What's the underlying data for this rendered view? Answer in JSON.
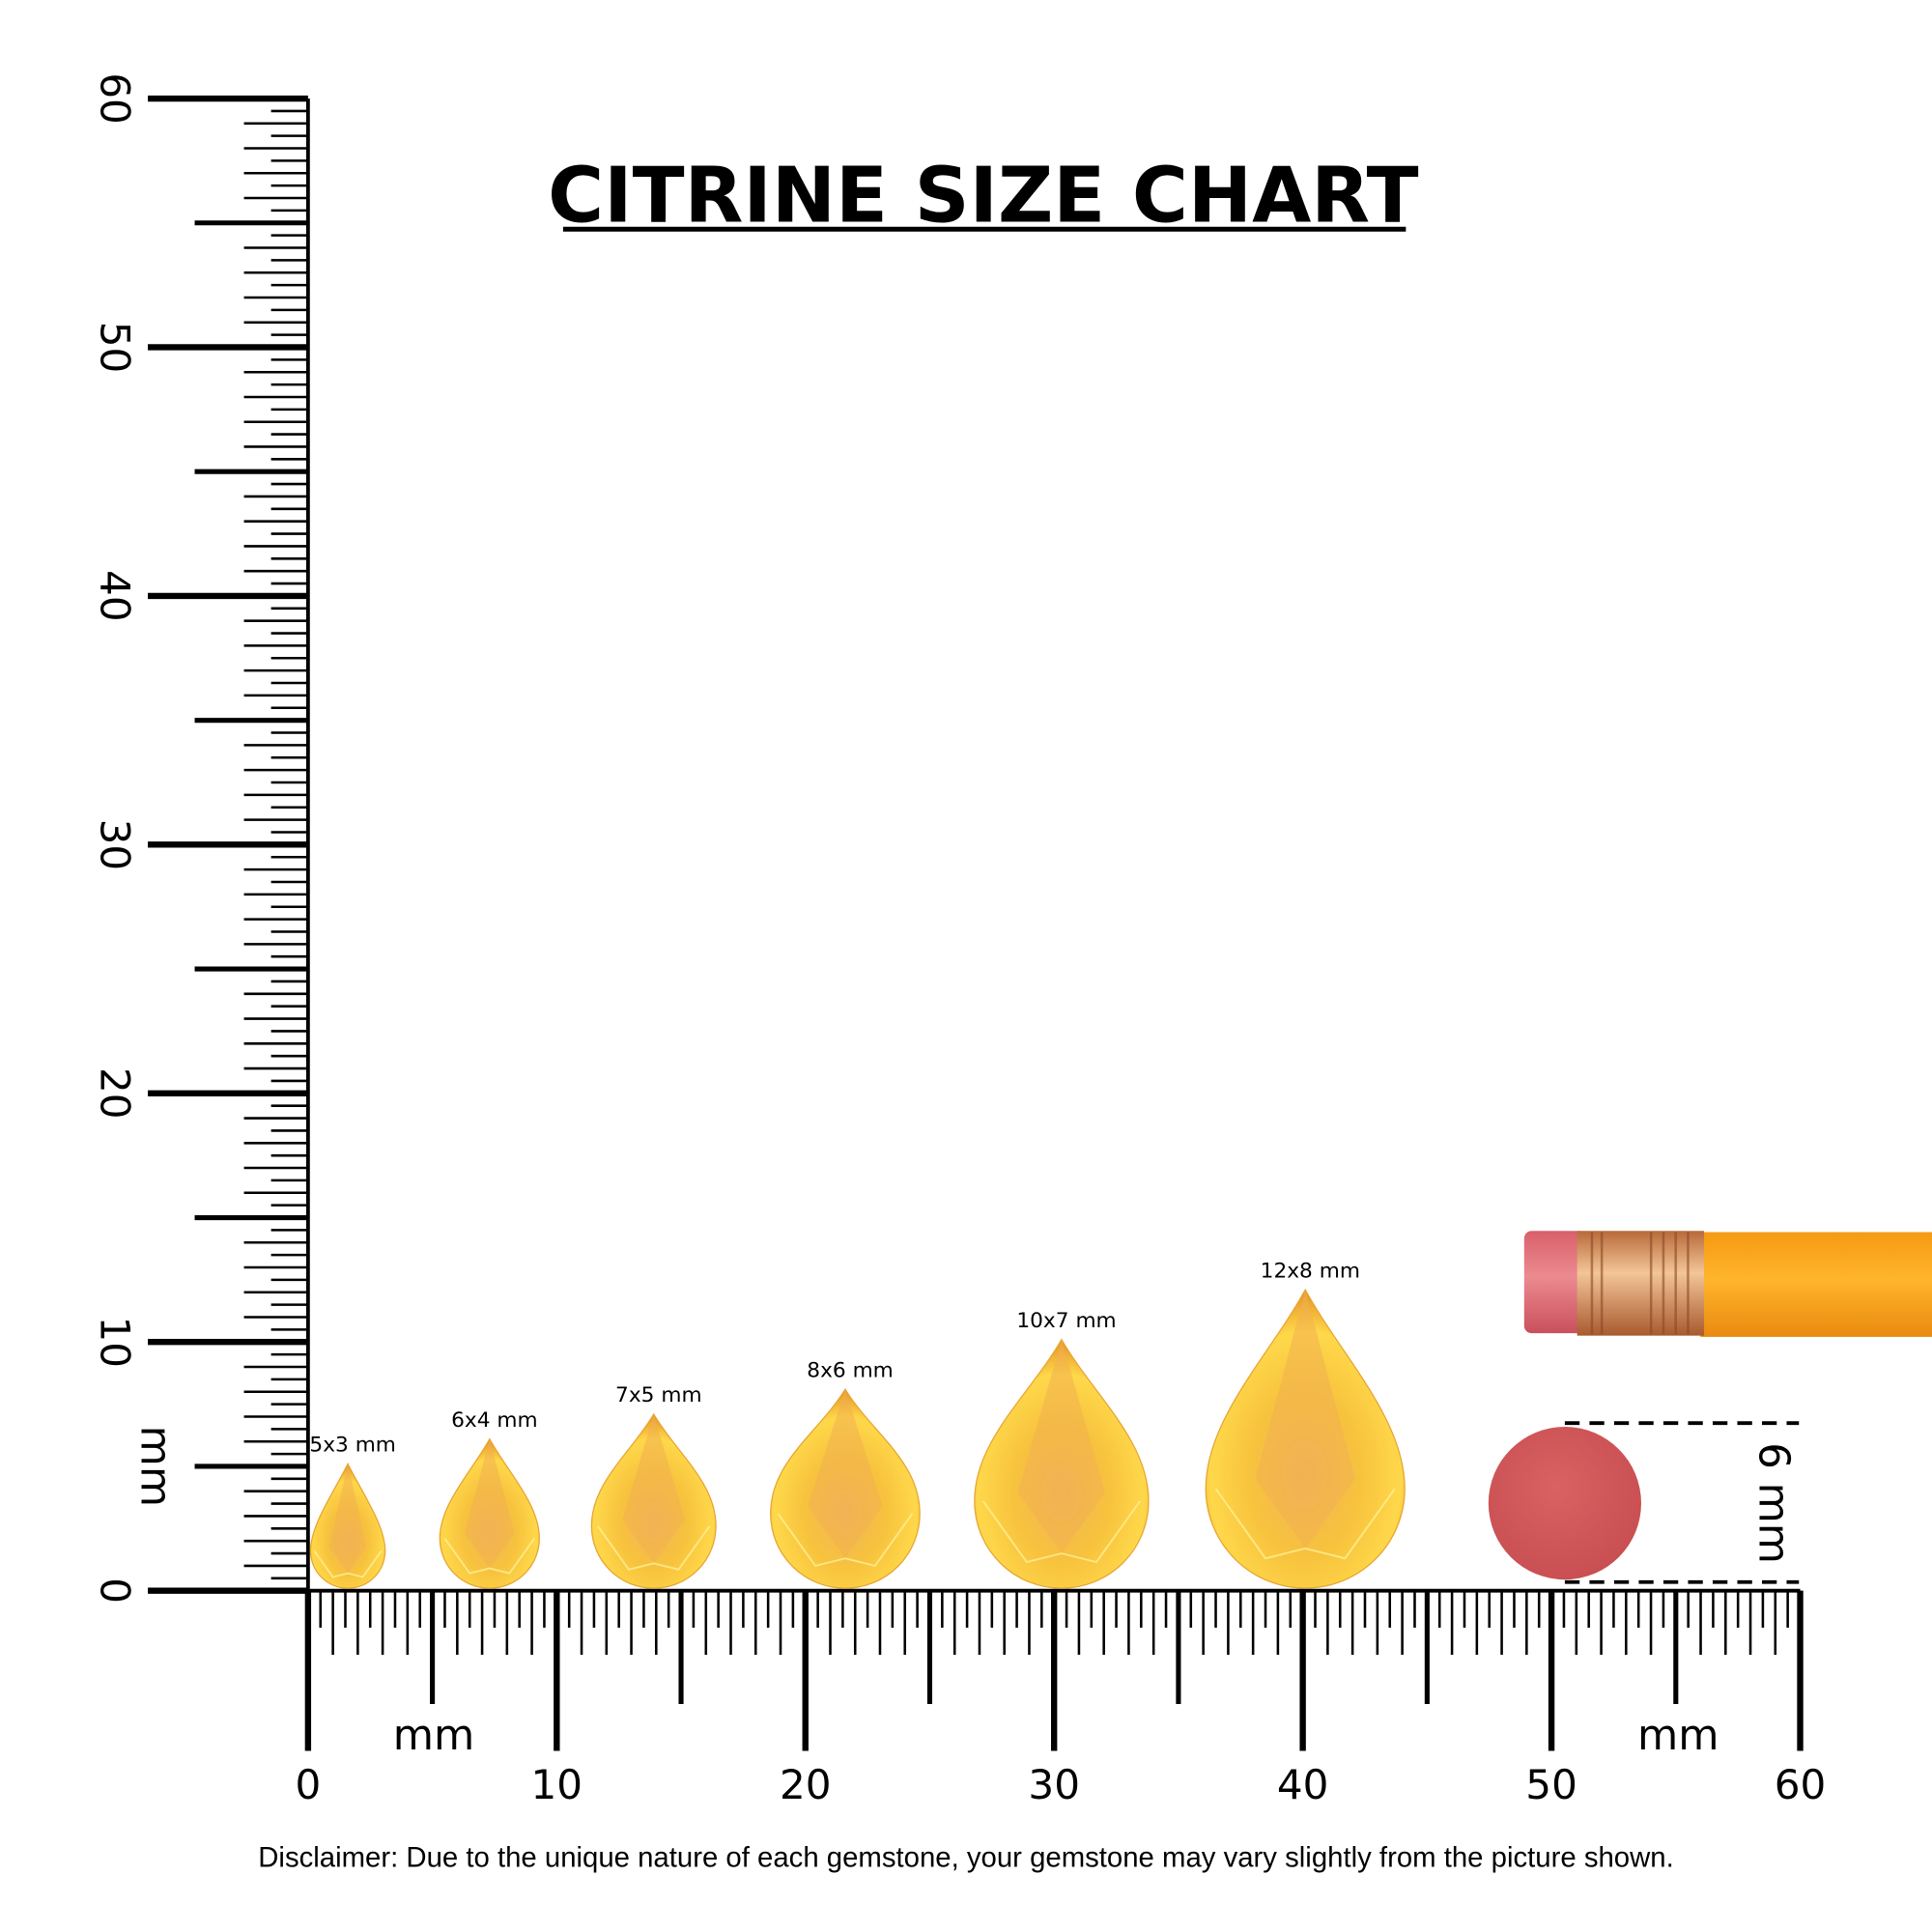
{
  "title": "CITRINE SIZE CHART",
  "disclaimer": "Disclaimer: Due to the unique nature of each gemstone, your gemstone may vary slightly from the picture shown.",
  "colors": {
    "gem_light": "#ffd84a",
    "gem_mid": "#f5b73b",
    "gem_dark": "#e89a2a",
    "eraser_ball": "#d05a5a",
    "pencil_body": "#f7a21b",
    "eraser": "#e0707a",
    "ferrule": "#d9955a"
  },
  "chart_data": {
    "type": "size-comparison",
    "title": "CITRINE SIZE CHART",
    "x_axis": {
      "unit_label": "mm",
      "range": [
        0,
        60
      ],
      "tick_labels": [
        "0",
        "10",
        "20",
        "30",
        "40",
        "50",
        "60"
      ]
    },
    "y_axis": {
      "unit_label": "mm",
      "range": [
        0,
        60
      ],
      "tick_labels": [
        "0",
        "10",
        "20",
        "30",
        "40",
        "50",
        "60"
      ]
    },
    "gems": [
      {
        "label": "5x3 mm",
        "length_mm": 5,
        "width_mm": 3,
        "center_mm": 1.6
      },
      {
        "label": "6x4 mm",
        "length_mm": 6,
        "width_mm": 4,
        "center_mm": 7.3
      },
      {
        "label": "7x5 mm",
        "length_mm": 7,
        "width_mm": 5,
        "center_mm": 13.9
      },
      {
        "label": "8x6 mm",
        "length_mm": 8,
        "width_mm": 6,
        "center_mm": 21.6
      },
      {
        "label": "10x7 mm",
        "length_mm": 10,
        "width_mm": 7,
        "center_mm": 30.3
      },
      {
        "label": "12x8 mm",
        "length_mm": 12,
        "width_mm": 8,
        "center_mm": 40.1
      }
    ],
    "reference": {
      "object": "pencil eraser",
      "size_label": "6 mm"
    }
  }
}
